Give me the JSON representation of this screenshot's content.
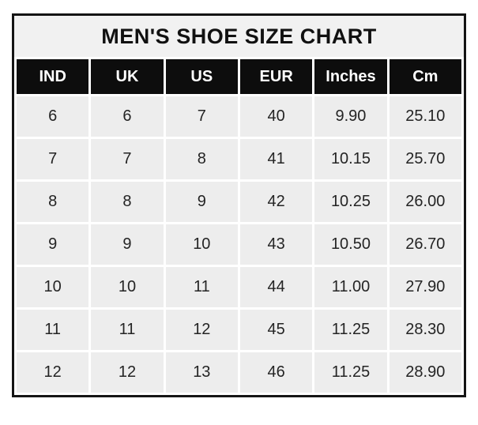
{
  "title": "MEN'S SHOE SIZE CHART",
  "colors": {
    "outer_border": "#141414",
    "title_background": "#f1f1f1",
    "header_background": "#0d0d0d",
    "header_text": "#ffffff",
    "cell_background": "#ededed",
    "cell_text": "#242424",
    "gridline": "#ffffff"
  },
  "chart_data": {
    "type": "table",
    "title": "MEN'S SHOE SIZE CHART",
    "columns": [
      "IND",
      "UK",
      "US",
      "EUR",
      "Inches",
      "Cm"
    ],
    "rows": [
      [
        "6",
        "6",
        "7",
        "40",
        "9.90",
        "25.10"
      ],
      [
        "7",
        "7",
        "8",
        "41",
        "10.15",
        "25.70"
      ],
      [
        "8",
        "8",
        "9",
        "42",
        "10.25",
        "26.00"
      ],
      [
        "9",
        "9",
        "10",
        "43",
        "10.50",
        "26.70"
      ],
      [
        "10",
        "10",
        "11",
        "44",
        "11.00",
        "27.90"
      ],
      [
        "11",
        "11",
        "12",
        "45",
        "11.25",
        "28.30"
      ],
      [
        "12",
        "12",
        "13",
        "46",
        "11.25",
        "28.90"
      ]
    ]
  }
}
